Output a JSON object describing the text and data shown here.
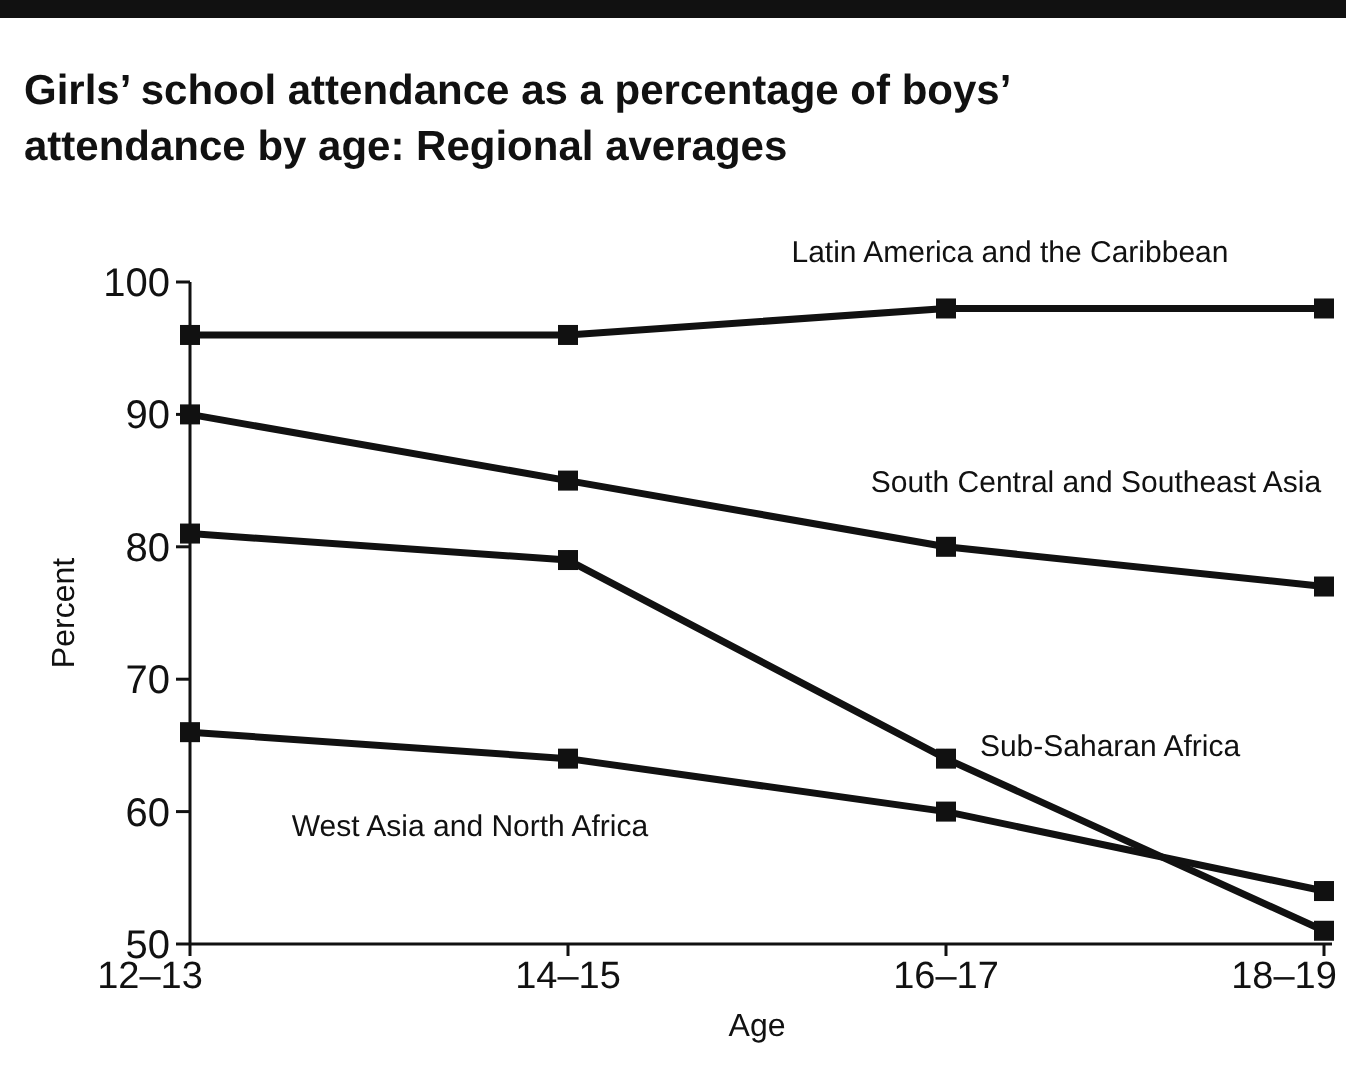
{
  "chart_data": {
    "type": "line",
    "title": "Girls’ school attendance as a percentage of boys’ attendance by age: Regional averages",
    "xlabel": "Age",
    "ylabel": "Percent",
    "categories": [
      "12–13",
      "14–15",
      "16–17",
      "18–19"
    ],
    "ylim": [
      50,
      100
    ],
    "yticks": [
      50,
      60,
      70,
      80,
      90,
      100
    ],
    "grid": false,
    "marker": "square",
    "line_style": "solid",
    "series": [
      {
        "name": "Latin America and the Caribbean",
        "color": "#111111",
        "values": [
          96,
          96,
          98,
          98
        ]
      },
      {
        "name": "South Central and Southeast Asia",
        "color": "#111111",
        "values": [
          90,
          85,
          80,
          77
        ]
      },
      {
        "name": "Sub-Saharan Africa",
        "color": "#111111",
        "values": [
          81,
          79,
          64,
          51
        ]
      },
      {
        "name": "West Asia and North Africa",
        "color": "#111111",
        "values": [
          66,
          64,
          60,
          54
        ]
      }
    ]
  }
}
